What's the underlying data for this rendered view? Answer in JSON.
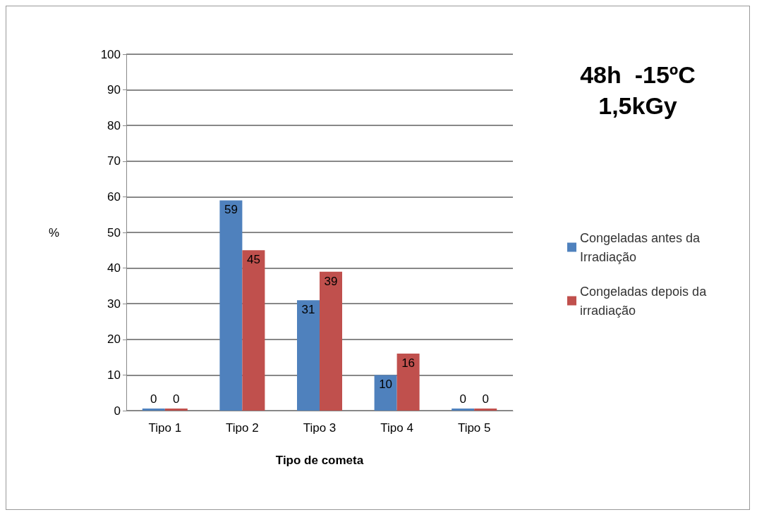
{
  "chart_data": {
    "type": "bar",
    "title": "48h  -15ºC\n1,5kGy",
    "xlabel": "Tipo de cometa",
    "ylabel": "%",
    "categories": [
      "Tipo 1",
      "Tipo 2",
      "Tipo 3",
      "Tipo 4",
      "Tipo 5"
    ],
    "series": [
      {
        "name": "Congeladas antes da Irradiação",
        "color": "#4f81bd",
        "values": [
          0,
          59,
          31,
          10,
          0
        ]
      },
      {
        "name": "Congeladas depois da irradiação",
        "color": "#c0504d",
        "values": [
          0,
          45,
          39,
          16,
          0
        ]
      }
    ],
    "ylim": [
      0,
      100
    ],
    "yticks": [
      0,
      10,
      20,
      30,
      40,
      50,
      60,
      70,
      80,
      90,
      100
    ],
    "grid": "y",
    "legend": "right",
    "data_labels": true
  }
}
